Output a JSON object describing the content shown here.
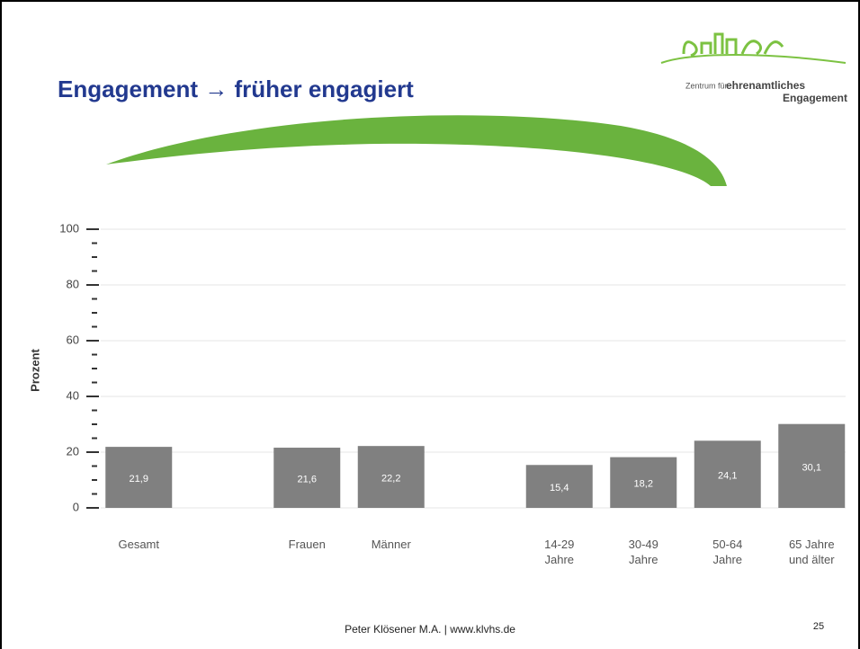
{
  "header": {
    "title": "Engagement → früher engagiert",
    "logo_line1": "Zentrum für",
    "logo_line2": "ehrenamtliches",
    "logo_line3": "Engagement"
  },
  "chart_data": {
    "type": "bar",
    "ylabel": "Prozent",
    "categories": [
      "Gesamt",
      null,
      "Frauen",
      "Männer",
      null,
      "14-29\nJahre",
      "30-49\nJahre",
      "50-64\nJahre",
      "65 Jahre\nund älter"
    ],
    "values": [
      21.9,
      null,
      21.6,
      22.2,
      null,
      15.4,
      18.2,
      24.1,
      30.1
    ],
    "value_labels": [
      "21,9",
      null,
      "21,6",
      "22,2",
      null,
      "15,4",
      "18,2",
      "24,1",
      "30,1"
    ],
    "color": "#808080",
    "ylim": [
      0,
      100
    ],
    "yticks": [
      0,
      20,
      40,
      60,
      80,
      100
    ],
    "minor_yticks": [
      5,
      10,
      15,
      25,
      30,
      35,
      45,
      50,
      55,
      65,
      70,
      75,
      85,
      90,
      95
    ],
    "grid": true
  },
  "footer": {
    "text": "Peter Klösener M.A. | www.klvhs.de",
    "page": "25"
  }
}
